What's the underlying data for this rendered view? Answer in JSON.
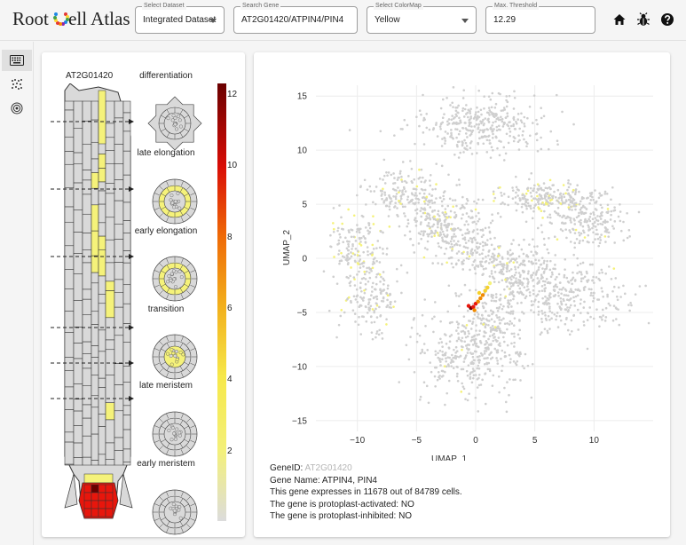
{
  "app": {
    "title_left": "Root ",
    "title_right": "ell Atlas",
    "logo_dot_colors": [
      "#e53935",
      "#fdd835",
      "#43a047",
      "#1e88e5",
      "#8e24aa",
      "#fb8c00"
    ]
  },
  "controls": {
    "dataset": {
      "label": "Select Dataset",
      "value": "Integrated Dataset"
    },
    "gene": {
      "label": "Search Gene",
      "value": "AT2G01420/ATPIN4/PIN4"
    },
    "colormap": {
      "label": "Select ColorMap",
      "value": "Yellow"
    },
    "threshold": {
      "label": "Max. Threshold",
      "value": "12.29"
    }
  },
  "toolbar_icons": [
    "home-icon",
    "bug-icon",
    "help-icon"
  ],
  "sidebar_icons": [
    "keyboard-icon",
    "scatter-icon",
    "flower-icon"
  ],
  "root_panel": {
    "gene_id": "AT2G01420",
    "stages": [
      "differentiation",
      "late elongation",
      "early elongation",
      "transition",
      "late meristem",
      "early meristem"
    ],
    "colorbar_ticks": [
      "2",
      "4",
      "6",
      "8",
      "10",
      "12"
    ],
    "colorbar_range": [
      0,
      12.29
    ],
    "palette": {
      "low": "#d9d9d9",
      "yellow": "#f5f27a",
      "orange": "#f08a00",
      "red": "#e8160c",
      "dark": "#6a0000"
    }
  },
  "chart_data": {
    "type": "scatter",
    "xlabel": "UMAP_1",
    "ylabel": "UMAP_2",
    "xlim": [
      -13.5,
      15
    ],
    "ylim": [
      -16,
      16
    ],
    "xticks": [
      -10,
      -5,
      0,
      5,
      10
    ],
    "yticks": [
      15,
      10,
      5,
      0,
      -5,
      -10,
      -15
    ],
    "grid": true,
    "clusters": [
      {
        "cx": 0.5,
        "cy": 12.3,
        "rx": 5.0,
        "ry": 2.4,
        "n": 360,
        "expr": 0
      },
      {
        "cx": -6.2,
        "cy": 6.0,
        "rx": 3.0,
        "ry": 2.0,
        "n": 160,
        "expr": 0.05
      },
      {
        "cx": -2.5,
        "cy": 3.2,
        "rx": 3.2,
        "ry": 2.4,
        "n": 260,
        "expr": 0.03
      },
      {
        "cx": 6.0,
        "cy": 5.5,
        "rx": 3.5,
        "ry": 1.6,
        "n": 230,
        "expr": 0.16
      },
      {
        "cx": 9.5,
        "cy": 3.5,
        "rx": 3.2,
        "ry": 2.4,
        "n": 200,
        "expr": 0.02
      },
      {
        "cx": -10.0,
        "cy": 1.0,
        "rx": 2.3,
        "ry": 3.0,
        "n": 160,
        "expr": 0.14
      },
      {
        "cx": -9.0,
        "cy": -3.6,
        "rx": 2.3,
        "ry": 3.2,
        "n": 160,
        "expr": 0.05
      },
      {
        "cx": 7.5,
        "cy": -3.5,
        "rx": 4.5,
        "ry": 3.2,
        "n": 300,
        "expr": 0.01
      },
      {
        "cx": 3.5,
        "cy": -1.0,
        "rx": 3.0,
        "ry": 2.4,
        "n": 220,
        "expr": 0.02
      },
      {
        "cx": -0.5,
        "cy": -9.0,
        "rx": 4.0,
        "ry": 3.8,
        "n": 330,
        "expr": 0.01
      },
      {
        "cx": 1.5,
        "cy": -6.0,
        "rx": 2.2,
        "ry": 3.0,
        "n": 160,
        "expr": 0.03
      },
      {
        "cx": -0.2,
        "cy": 0.5,
        "rx": 2.3,
        "ry": 2.0,
        "n": 110,
        "expr": 0.04
      }
    ],
    "hotspots": [
      {
        "x": -0.4,
        "y": -4.6,
        "value": 12.2
      },
      {
        "x": -0.2,
        "y": -4.5,
        "value": 11.0
      },
      {
        "x": -0.6,
        "y": -4.4,
        "value": 10.0
      },
      {
        "x": 0.0,
        "y": -4.2,
        "value": 9.0
      },
      {
        "x": 0.2,
        "y": -4.0,
        "value": 8.0
      },
      {
        "x": 0.4,
        "y": -3.7,
        "value": 7.0
      },
      {
        "x": -0.1,
        "y": -4.8,
        "value": 6.0
      },
      {
        "x": 0.6,
        "y": -3.4,
        "value": 6.5
      },
      {
        "x": 0.8,
        "y": -3.0,
        "value": 5.0
      },
      {
        "x": 1.0,
        "y": -2.7,
        "value": 4.0
      },
      {
        "x": 1.2,
        "y": -2.3,
        "value": 3.0
      },
      {
        "x": 0.3,
        "y": -3.2,
        "value": 5.5
      }
    ]
  },
  "gene_info": {
    "id_label": "GeneID: ",
    "id_value": "AT2G01420",
    "name": "Gene Name: ATPIN4, PIN4",
    "expression": "This gene expresses in 11678 out of 84789 cells.",
    "activated": "The gene is protoplast-activated: NO",
    "inhibited": "The gene is protoplast-inhibited: NO"
  }
}
